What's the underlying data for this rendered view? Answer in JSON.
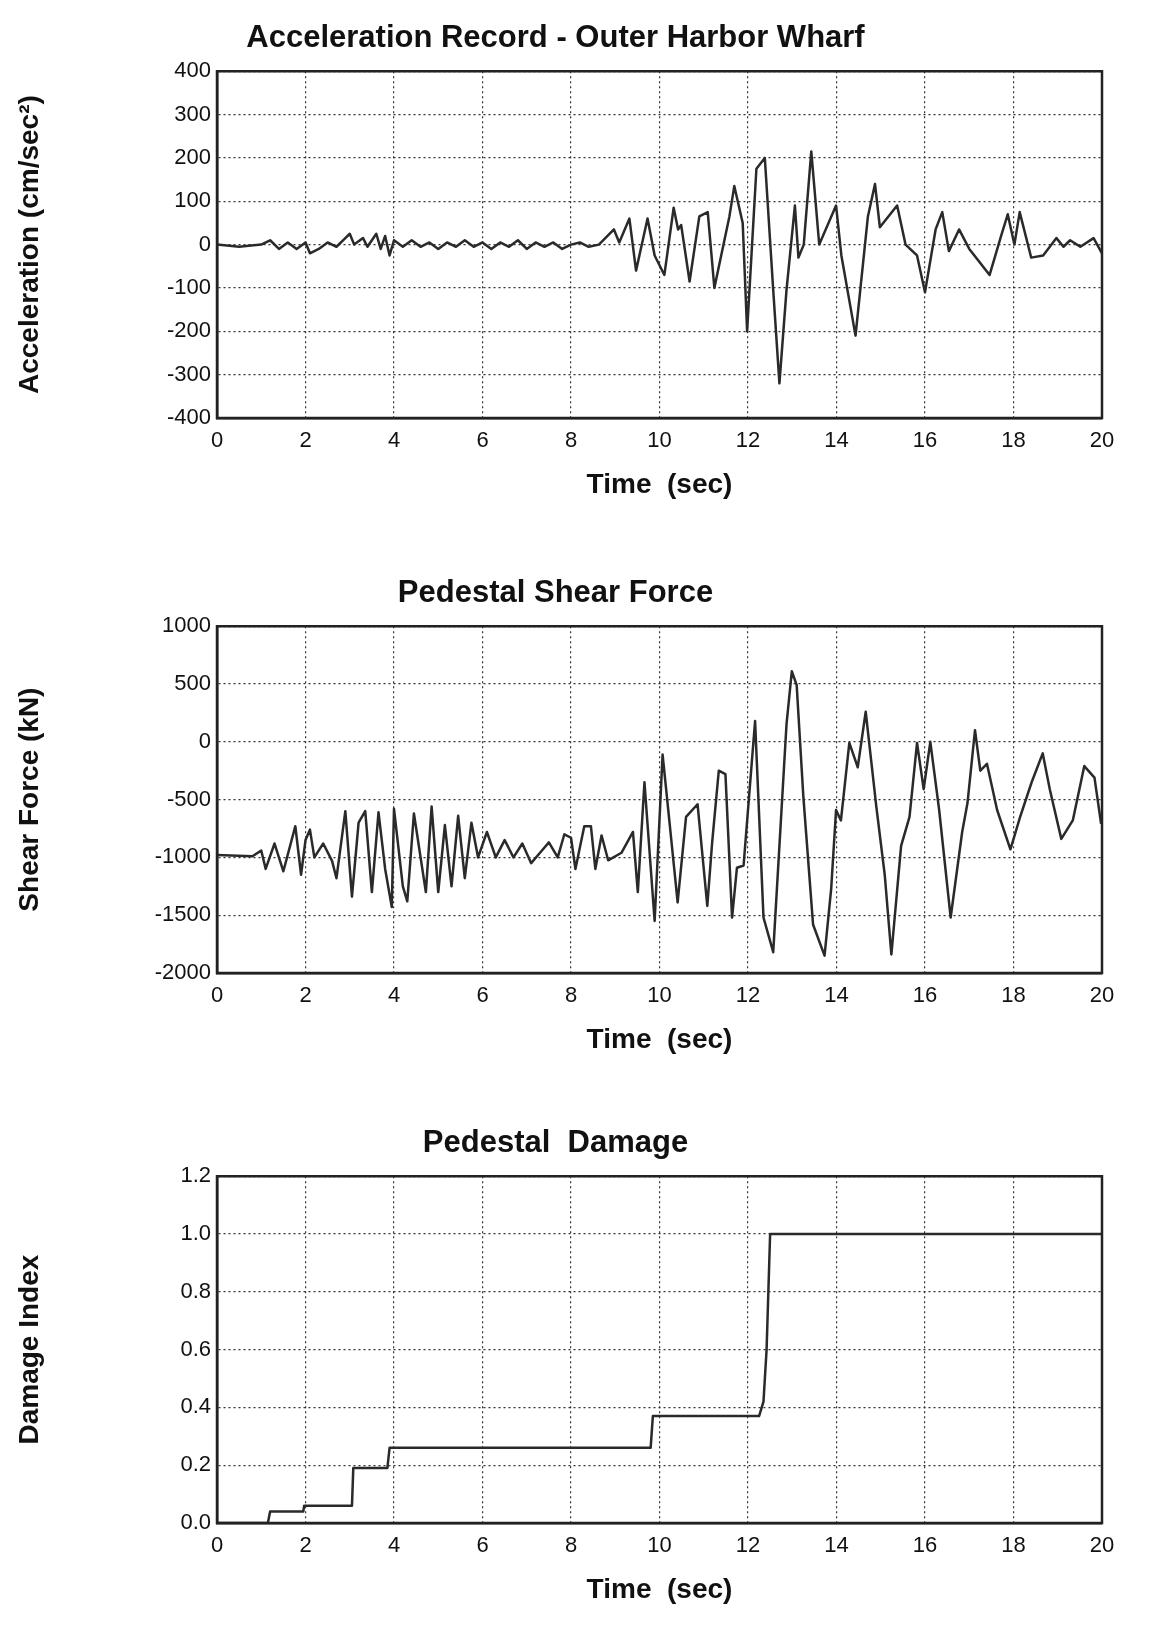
{
  "chart_data": [
    {
      "type": "line",
      "title": "Acceleration Record - Outer Harbor Wharf",
      "xlabel": "Time  (sec)",
      "ylabel": "Acceleration (cm/sec²)",
      "xlim": [
        0,
        20
      ],
      "ylim": [
        -400,
        400
      ],
      "xticks": [
        0,
        2,
        4,
        6,
        8,
        10,
        12,
        14,
        16,
        18,
        20
      ],
      "yticks": [
        -400,
        -300,
        -200,
        -100,
        0,
        100,
        200,
        300,
        400
      ],
      "grid": true,
      "marker": "none",
      "line_style": "solid",
      "series": [
        {
          "color": "#2a2a2a",
          "x": [
            0,
            0.5,
            1,
            1.2,
            1.4,
            1.6,
            1.8,
            2,
            2.1,
            2.3,
            2.5,
            2.7,
            2.9,
            3,
            3.1,
            3.3,
            3.4,
            3.6,
            3.7,
            3.8,
            3.9,
            4,
            4.2,
            4.4,
            4.6,
            4.8,
            5,
            5.2,
            5.4,
            5.6,
            5.8,
            6,
            6.2,
            6.4,
            6.6,
            6.8,
            7,
            7.2,
            7.4,
            7.6,
            7.8,
            8,
            8.2,
            8.4,
            8.63,
            8.97,
            9.09,
            9.32,
            9.47,
            9.73,
            9.89,
            10.11,
            10.32,
            10.42,
            10.49,
            10.68,
            10.9,
            11.09,
            11.24,
            11.58,
            11.69,
            11.88,
            11.98,
            12.19,
            12.38,
            12.57,
            12.71,
            12.87,
            13.06,
            13.14,
            13.26,
            13.43,
            13.61,
            13.99,
            14.11,
            14.43,
            14.71,
            14.87,
            14.98,
            15.37,
            15.56,
            15.82,
            16,
            16.24,
            16.39,
            16.54,
            16.77,
            17,
            17.46,
            17.72,
            17.87,
            18.02,
            18.14,
            18.4,
            18.67,
            18.97,
            19.13,
            19.28,
            19.51,
            19.81,
            20
          ],
          "values": [
            0,
            -5,
            0,
            10,
            -10,
            5,
            -10,
            5,
            -20,
            -10,
            5,
            -5,
            15,
            25,
            0,
            15,
            -5,
            25,
            -10,
            20,
            -25,
            10,
            -5,
            10,
            -5,
            5,
            -10,
            5,
            -5,
            10,
            -5,
            5,
            -10,
            5,
            -5,
            10,
            -10,
            5,
            -5,
            5,
            -10,
            0,
            5,
            -5,
            0,
            35,
            5,
            60,
            -60,
            60,
            -25,
            -70,
            85,
            35,
            45,
            -85,
            65,
            75,
            -100,
            65,
            135,
            50,
            -200,
            175,
            200,
            -105,
            -320,
            -105,
            90,
            -30,
            0,
            215,
            0,
            90,
            -25,
            -210,
            65,
            140,
            40,
            90,
            0,
            -25,
            -110,
            35,
            75,
            -15,
            35,
            -10,
            -70,
            20,
            70,
            0,
            75,
            -30,
            -25,
            15,
            -5,
            10,
            -5,
            15,
            -20
          ]
        }
      ]
    },
    {
      "type": "line",
      "title": "Pedestal Shear Force",
      "xlabel": "Time  (sec)",
      "ylabel": "Shear Force (kN)",
      "xlim": [
        0,
        20
      ],
      "ylim": [
        -2000,
        1000
      ],
      "xticks": [
        0,
        2,
        4,
        6,
        8,
        10,
        12,
        14,
        16,
        18,
        20
      ],
      "yticks": [
        -2000,
        -1500,
        -1000,
        -500,
        0,
        500,
        1000
      ],
      "grid": true,
      "marker": "none",
      "line_style": "solid",
      "series": [
        {
          "color": "#2a2a2a",
          "x": [
            0,
            0.8,
            1,
            1.1,
            1.3,
            1.5,
            1.77,
            1.9,
            2,
            2.1,
            2.2,
            2.4,
            2.6,
            2.7,
            2.9,
            3.05,
            3.2,
            3.35,
            3.5,
            3.65,
            3.8,
            3.95,
            4,
            4.2,
            4.3,
            4.45,
            4.72,
            4.85,
            5,
            5.15,
            5.3,
            5.45,
            5.6,
            5.75,
            5.9,
            6.1,
            6.3,
            6.5,
            6.7,
            6.9,
            7.1,
            7.3,
            7.5,
            7.7,
            7.85,
            8,
            8.1,
            8.3,
            8.45,
            8.55,
            8.69,
            8.84,
            9.14,
            9.4,
            9.51,
            9.66,
            9.89,
            10.07,
            10.19,
            10.41,
            10.6,
            10.86,
            11.08,
            11.19,
            11.34,
            11.49,
            11.64,
            11.75,
            11.9,
            12.16,
            12.35,
            12.57,
            12.87,
            12.99,
            13.1,
            13.25,
            13.47,
            13.73,
            13.88,
            13.99,
            14.1,
            14.29,
            14.48,
            14.66,
            14.9,
            15.09,
            15.24,
            15.46,
            15.65,
            15.82,
            15.97,
            16.12,
            16.32,
            16.58,
            16.84,
            16.96,
            17.13,
            17.25,
            17.4,
            17.63,
            17.93,
            18.15,
            18.41,
            18.66,
            18.82,
            19.08,
            19.34,
            19.6,
            19.83,
            19.98
          ],
          "values": [
            -980,
            -990,
            -940,
            -1100,
            -880,
            -1120,
            -730,
            -1150,
            -850,
            -760,
            -1000,
            -880,
            -1030,
            -1180,
            -600,
            -1340,
            -700,
            -600,
            -1300,
            -610,
            -1100,
            -1430,
            -580,
            -1250,
            -1380,
            -620,
            -1300,
            -560,
            -1300,
            -720,
            -1250,
            -640,
            -1180,
            -700,
            -1000,
            -780,
            -1000,
            -850,
            -1000,
            -880,
            -1050,
            -960,
            -870,
            -1000,
            -800,
            -830,
            -1100,
            -730,
            -730,
            -1100,
            -810,
            -1025,
            -960,
            -780,
            -1300,
            -350,
            -1550,
            -110,
            -560,
            -1390,
            -650,
            -540,
            -1420,
            -870,
            -250,
            -280,
            -1520,
            -1090,
            -1070,
            180,
            -1520,
            -1820,
            150,
            610,
            490,
            -470,
            -1580,
            -1850,
            -1270,
            -590,
            -680,
            -10,
            -220,
            260,
            -560,
            -1150,
            -1840,
            -900,
            -650,
            -10,
            -410,
            0,
            -590,
            -1520,
            -780,
            -530,
            100,
            -250,
            -190,
            -590,
            -930,
            -650,
            -350,
            -100,
            -410,
            -840,
            -680,
            -210,
            -310,
            -710
          ]
        }
      ]
    },
    {
      "type": "line",
      "title": "Pedestal  Damage",
      "xlabel": "Time  (sec)",
      "ylabel": "Damage Index",
      "xlim": [
        0,
        20
      ],
      "ylim": [
        0,
        1.2
      ],
      "xticks": [
        0,
        2,
        4,
        6,
        8,
        10,
        12,
        14,
        16,
        18,
        20
      ],
      "yticks": [
        {
          "value": 0,
          "label": "0.0"
        },
        {
          "value": 0.2,
          "label": "0.2"
        },
        {
          "value": 0.4,
          "label": "0.4"
        },
        {
          "value": 0.6,
          "label": "0.6"
        },
        {
          "value": 0.8,
          "label": "0.8"
        },
        {
          "value": 1,
          "label": "1.0"
        },
        {
          "value": 1.2,
          "label": "1.2"
        }
      ],
      "grid": true,
      "marker": "none",
      "line_style": "solid",
      "series": [
        {
          "color": "#2a2a2a",
          "x": [
            0,
            1.15,
            1.2,
            1.95,
            1.97,
            3.05,
            3.08,
            3.85,
            3.9,
            9.8,
            9.85,
            12.25,
            12.35,
            12.42,
            12.5,
            20
          ],
          "values": [
            0,
            0,
            0.04,
            0.04,
            0.06,
            0.06,
            0.19,
            0.19,
            0.26,
            0.26,
            0.37,
            0.37,
            0.42,
            0.6,
            1,
            1
          ]
        }
      ]
    }
  ]
}
